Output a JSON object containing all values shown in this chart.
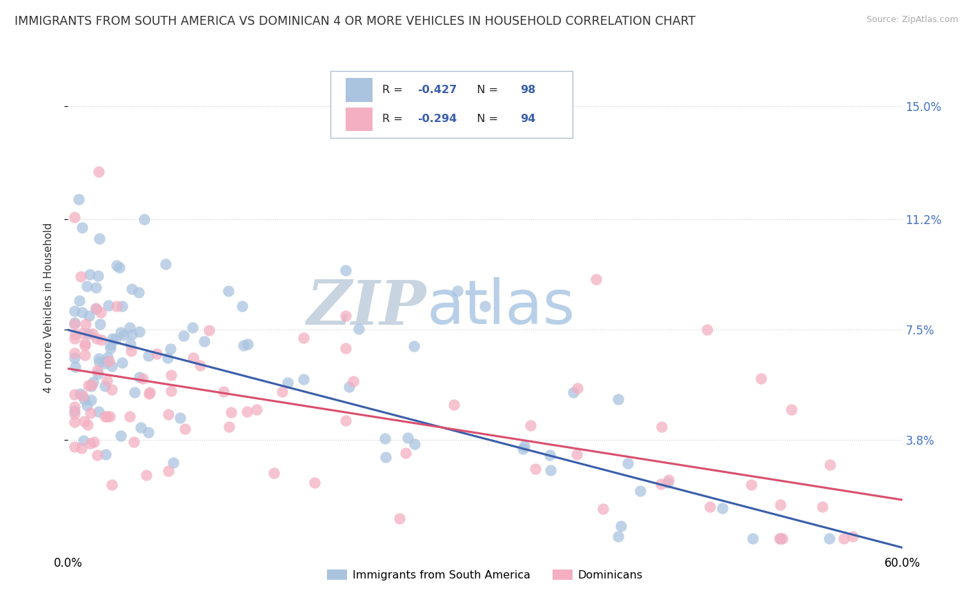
{
  "title": "IMMIGRANTS FROM SOUTH AMERICA VS DOMINICAN 4 OR MORE VEHICLES IN HOUSEHOLD CORRELATION CHART",
  "source": "Source: ZipAtlas.com",
  "ylabel": "4 or more Vehicles in Household",
  "xlim": [
    0.0,
    0.6
  ],
  "ylim": [
    0.0,
    0.165
  ],
  "yticks": [
    0.038,
    0.075,
    0.112,
    0.15
  ],
  "ytick_labels": [
    "3.8%",
    "7.5%",
    "11.2%",
    "15.0%"
  ],
  "xticks": [
    0.0,
    0.6
  ],
  "xtick_labels": [
    "0.0%",
    "60.0%"
  ],
  "r_blue": -0.427,
  "n_blue": 98,
  "r_pink": -0.294,
  "n_pink": 94,
  "legend_label_blue": "Immigrants from South America",
  "legend_label_pink": "Dominicans",
  "color_blue": "#aac4df",
  "color_pink": "#f4afc2",
  "line_color_blue": "#3a5eaa",
  "line_color_pink": "#d94f6e",
  "watermark_zip": "ZIP",
  "watermark_atlas": "atlas",
  "watermark_color_zip": "#c8d4e0",
  "watermark_color_atlas": "#b8cfe8",
  "title_fontsize": 12.5,
  "axis_label_fontsize": 11,
  "tick_label_color_right": "#4472c4",
  "background_color": "#ffffff",
  "blue_line_start_y": 0.075,
  "blue_line_end_y": 0.002,
  "pink_line_start_y": 0.062,
  "pink_line_end_y": 0.018
}
